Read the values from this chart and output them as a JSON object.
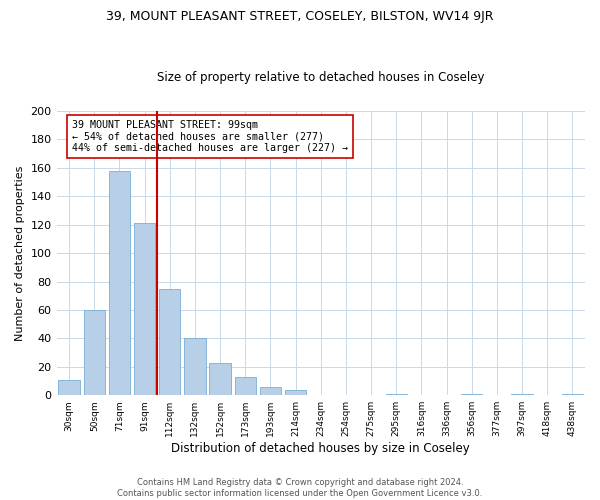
{
  "title": "39, MOUNT PLEASANT STREET, COSELEY, BILSTON, WV14 9JR",
  "subtitle": "Size of property relative to detached houses in Coseley",
  "xlabel": "Distribution of detached houses by size in Coseley",
  "ylabel": "Number of detached properties",
  "bar_values": [
    11,
    60,
    158,
    121,
    75,
    40,
    23,
    13,
    6,
    4,
    0,
    0,
    0,
    1,
    0,
    0,
    1,
    0,
    1,
    0,
    1
  ],
  "bar_labels": [
    "30sqm",
    "50sqm",
    "71sqm",
    "91sqm",
    "112sqm",
    "132sqm",
    "152sqm",
    "173sqm",
    "193sqm",
    "214sqm",
    "234sqm",
    "254sqm",
    "275sqm",
    "295sqm",
    "316sqm",
    "336sqm",
    "356sqm",
    "377sqm",
    "397sqm",
    "418sqm",
    "438sqm"
  ],
  "bar_color": "#b8cfe8",
  "bar_edgecolor": "#7aaed4",
  "vline_color": "#cc0000",
  "annotation_title": "39 MOUNT PLEASANT STREET: 99sqm",
  "annotation_line1": "← 54% of detached houses are smaller (277)",
  "annotation_line2": "44% of semi-detached houses are larger (227) →",
  "annotation_box_edgecolor": "#cc0000",
  "ylim": [
    0,
    200
  ],
  "yticks": [
    0,
    20,
    40,
    60,
    80,
    100,
    120,
    140,
    160,
    180,
    200
  ],
  "footer1": "Contains HM Land Registry data © Crown copyright and database right 2024.",
  "footer2": "Contains public sector information licensed under the Open Government Licence v3.0.",
  "background_color": "#ffffff",
  "grid_color": "#c8d8e8"
}
